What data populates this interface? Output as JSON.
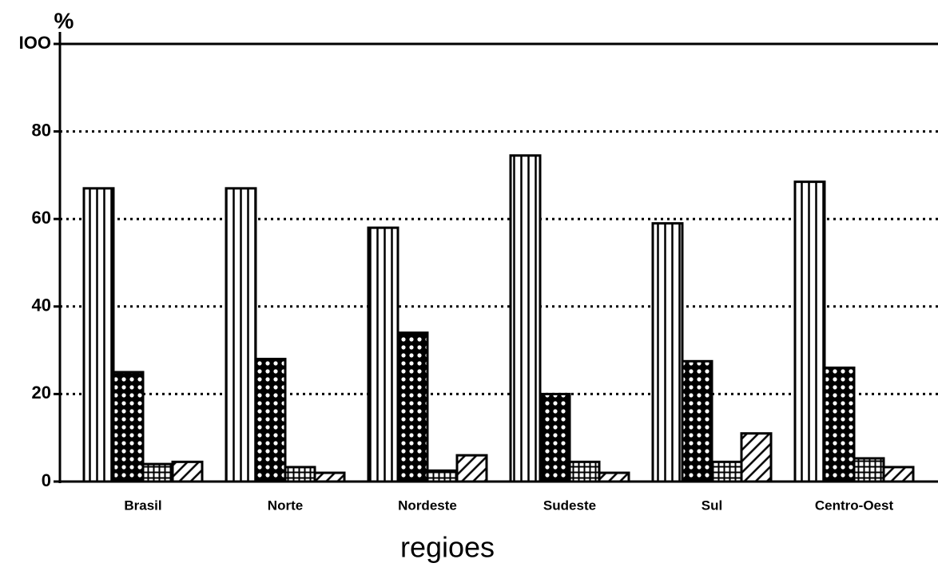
{
  "chart_data": {
    "type": "bar",
    "y_label": "%",
    "x_label": "regioes",
    "categories": [
      "Brasil",
      "Norte",
      "Nordeste",
      "Sudeste",
      "Sul",
      "Centro-Oest"
    ],
    "series": [
      {
        "color": "#000000",
        "pattern": "vertical",
        "values": [
          67,
          67,
          58,
          74.5,
          59,
          68.5
        ]
      },
      {
        "color": "#000000",
        "pattern": "crosshatch",
        "values": [
          25,
          28,
          34,
          20,
          27.5,
          26
        ]
      },
      {
        "color": "#000000",
        "pattern": "grid",
        "values": [
          4,
          3.3,
          2.5,
          4.5,
          4.5,
          5.3
        ]
      },
      {
        "color": "#000000",
        "pattern": "diagonal",
        "values": [
          4.5,
          2,
          6,
          2,
          11,
          3.3
        ]
      }
    ],
    "ylim": [
      0,
      100
    ],
    "yticks": [
      0,
      20,
      40,
      60,
      80,
      {
        "value": 100,
        "label": "IOO"
      }
    ],
    "grid": true,
    "grid_style": "dotted"
  }
}
